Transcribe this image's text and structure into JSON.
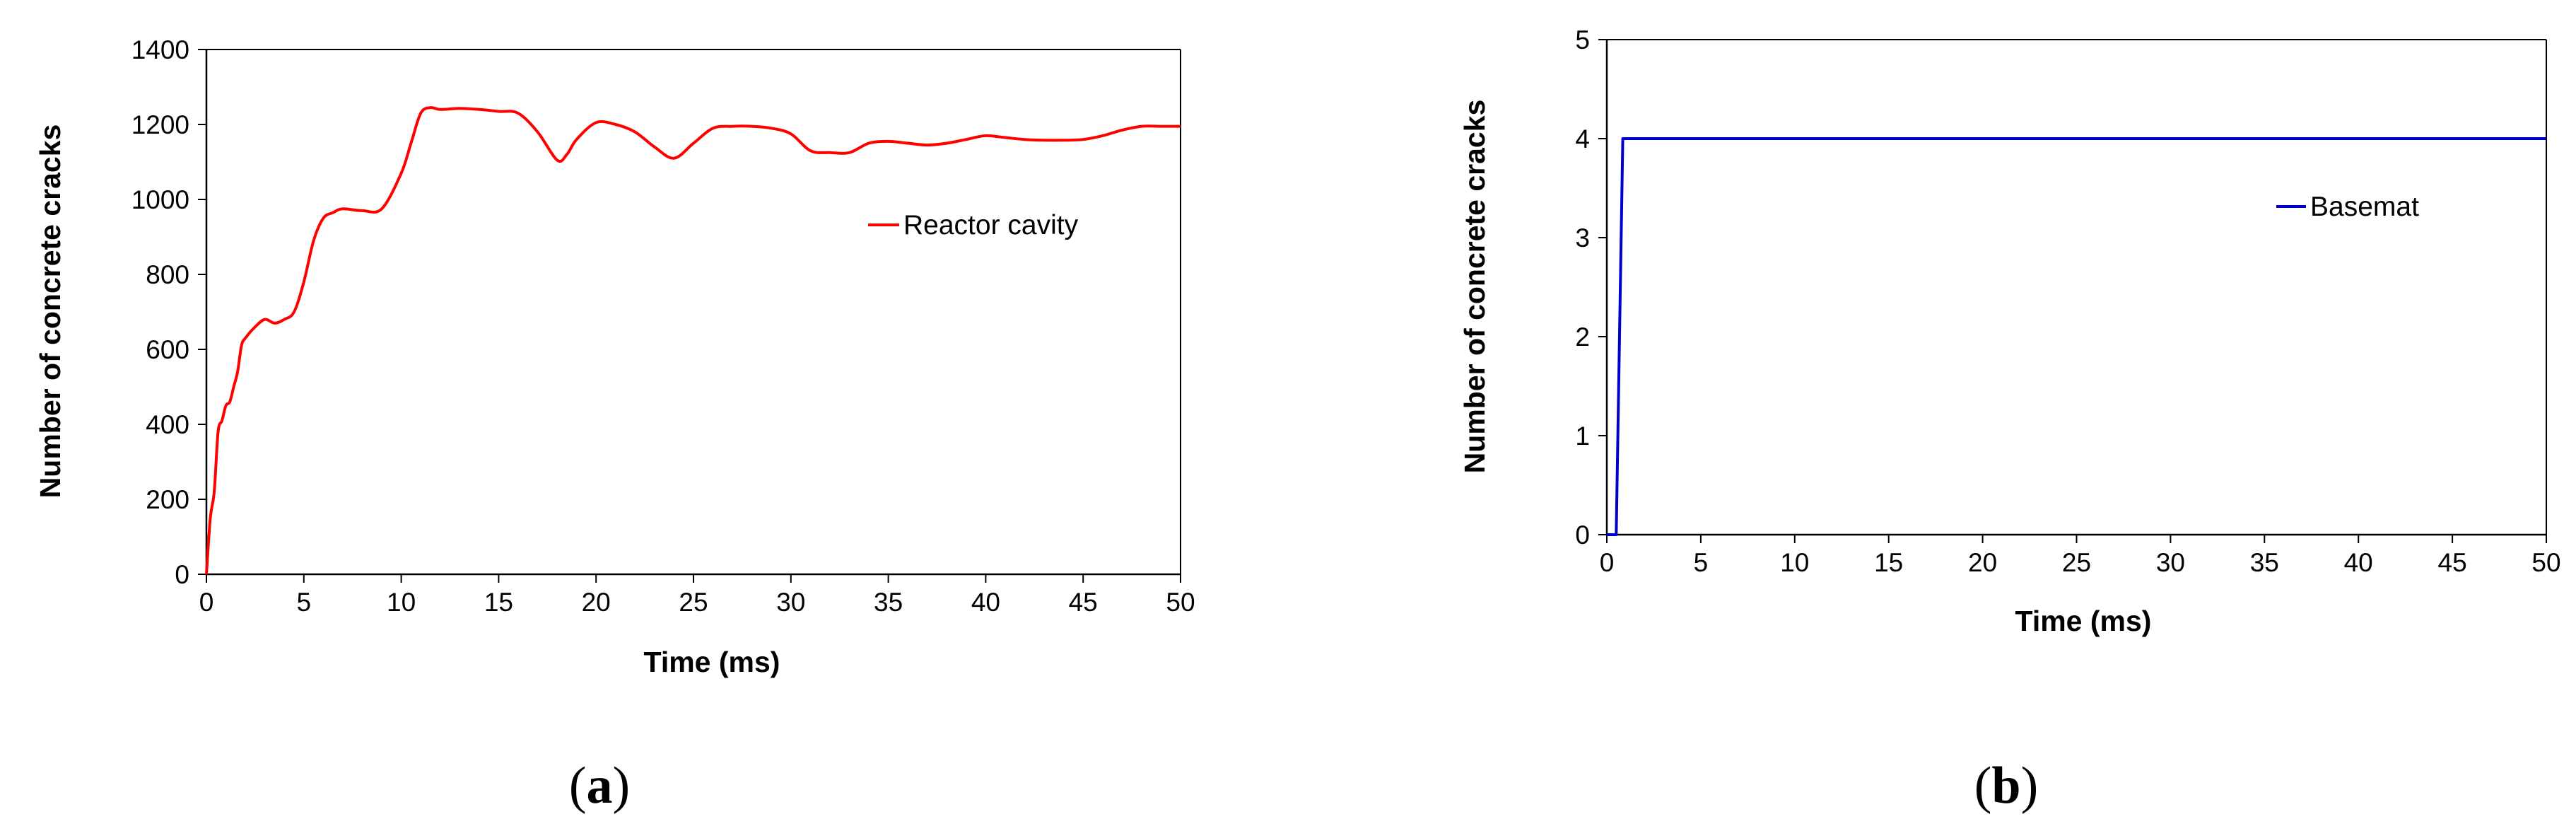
{
  "chart_data": [
    {
      "type": "line",
      "panel_label": "a",
      "title": "",
      "xlabel": "Time (ms)",
      "ylabel": "Number of concrete cracks",
      "xlim": [
        0,
        50
      ],
      "ylim": [
        0,
        1400
      ],
      "xticks": [
        0,
        5,
        10,
        15,
        20,
        25,
        30,
        35,
        40,
        45,
        50
      ],
      "yticks": [
        0,
        200,
        400,
        600,
        800,
        1000,
        1200,
        1400
      ],
      "grid": false,
      "legend_position": "center-right",
      "series": [
        {
          "name": "Reactor cavity",
          "color": "#ff0000",
          "x": [
            0,
            0.2,
            0.4,
            0.6,
            0.8,
            1.0,
            1.2,
            1.4,
            1.6,
            1.8,
            2.0,
            2.5,
            3.0,
            3.5,
            4.0,
            4.5,
            5.0,
            5.5,
            6.0,
            6.5,
            7.0,
            8.0,
            9.0,
            10.0,
            10.5,
            11.0,
            11.5,
            12.0,
            13.0,
            14.0,
            15.0,
            16.0,
            17.0,
            18.0,
            18.5,
            19.0,
            20.0,
            21.0,
            22.0,
            23.0,
            24.0,
            25.0,
            26.0,
            27.0,
            28.0,
            29.0,
            30.0,
            31.0,
            32.0,
            33.0,
            34.0,
            35.0,
            36.0,
            37.0,
            38.0,
            39.0,
            40.0,
            41.0,
            42.0,
            43.0,
            44.0,
            45.0,
            46.0,
            47.0,
            48.0,
            49.0,
            50.0
          ],
          "y": [
            0,
            150,
            220,
            380,
            410,
            450,
            460,
            500,
            540,
            610,
            630,
            660,
            680,
            670,
            680,
            700,
            780,
            890,
            950,
            965,
            975,
            970,
            975,
            1070,
            1150,
            1230,
            1245,
            1240,
            1243,
            1240,
            1235,
            1230,
            1180,
            1105,
            1120,
            1160,
            1205,
            1200,
            1180,
            1140,
            1110,
            1150,
            1190,
            1195,
            1195,
            1190,
            1175,
            1130,
            1125,
            1125,
            1150,
            1155,
            1150,
            1145,
            1150,
            1160,
            1170,
            1165,
            1160,
            1158,
            1158,
            1160,
            1170,
            1185,
            1195,
            1195,
            1195
          ]
        }
      ]
    },
    {
      "type": "line",
      "panel_label": "b",
      "title": "",
      "xlabel": "Time (ms)",
      "ylabel": "Number of concrete cracks",
      "xlim": [
        0,
        50
      ],
      "ylim": [
        0,
        5
      ],
      "xticks": [
        0,
        5,
        10,
        15,
        20,
        25,
        30,
        35,
        40,
        45,
        50
      ],
      "yticks": [
        0,
        1,
        2,
        3,
        4,
        5
      ],
      "grid": false,
      "legend_position": "right",
      "series": [
        {
          "name": "Basemat",
          "color": "#0000cc",
          "x": [
            0,
            0.5,
            0.85,
            50
          ],
          "y": [
            0,
            0,
            4,
            4
          ]
        }
      ]
    }
  ]
}
